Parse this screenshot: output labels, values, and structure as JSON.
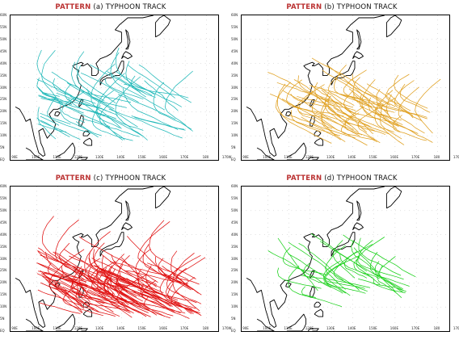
{
  "panels": [
    {
      "title_prefix": "PATTERN",
      "title_rest": "(a) TYPHOON TRACK",
      "color": "#1fb8b8"
    },
    {
      "title_prefix": "PATTERN",
      "title_rest": "(b) TYPHOON TRACK",
      "color": "#e0a020"
    },
    {
      "title_prefix": "PATTERN",
      "title_rest": "(c) TYPHOON TRACK",
      "color": "#e01010"
    },
    {
      "title_prefix": "PATTERN",
      "title_rest": "(d) TYPHOON TRACK",
      "color": "#18d018"
    }
  ],
  "lat_labels": [
    "60N",
    "55N",
    "50N",
    "45N",
    "40N",
    "35N",
    "30N",
    "25N",
    "20N",
    "15N",
    "10N",
    "5N",
    "EQ"
  ],
  "lon_labels": [
    "90E",
    "100E",
    "110E",
    "120E",
    "130E",
    "140E",
    "150E",
    "160E",
    "170E",
    "180",
    "170W"
  ],
  "track_counts": {
    "a": 60,
    "b": 70,
    "c": 120,
    "d": 35
  }
}
